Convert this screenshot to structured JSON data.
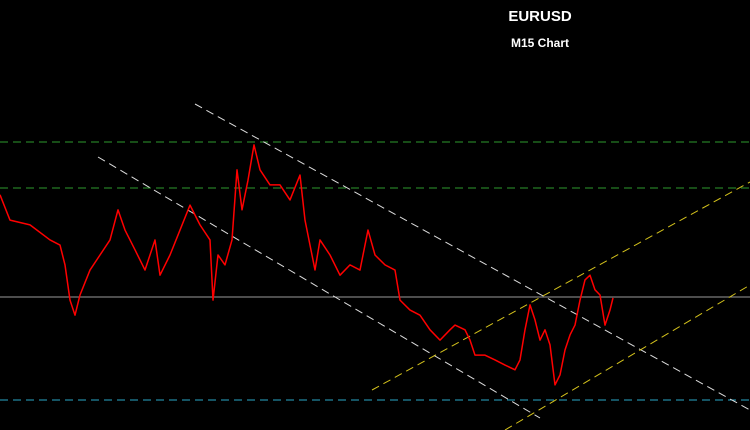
{
  "chart_data": {
    "type": "line",
    "title": "EURUSD",
    "subtitle": "M15 Chart",
    "xlim": [
      0,
      750
    ],
    "ylim": [
      0,
      100
    ],
    "color": "#ff0000",
    "x": [
      0,
      10,
      30,
      50,
      60,
      65,
      70,
      75,
      80,
      90,
      100,
      110,
      118,
      125,
      135,
      145,
      155,
      160,
      170,
      180,
      190,
      200,
      210,
      213,
      218,
      225,
      232,
      237,
      242,
      248,
      254,
      260,
      270,
      280,
      290,
      300,
      305,
      310,
      315,
      320,
      330,
      340,
      350,
      360,
      368,
      375,
      385,
      395,
      400,
      410,
      420,
      430,
      440,
      450,
      455,
      465,
      470,
      475,
      485,
      495,
      505,
      515,
      520,
      525,
      530,
      535,
      540,
      545,
      550,
      555,
      560,
      565,
      570,
      575,
      580,
      585,
      590,
      595,
      600,
      605,
      610,
      613
    ],
    "values": [
      54.7,
      48.8,
      47.7,
      44.2,
      43.0,
      38.4,
      30.2,
      26.7,
      31.4,
      37.2,
      40.7,
      44.2,
      51.2,
      46.5,
      41.9,
      37.2,
      44.2,
      36.0,
      40.7,
      46.5,
      52.3,
      47.7,
      44.2,
      30.2,
      40.7,
      38.4,
      44.2,
      60.5,
      51.2,
      58.1,
      66.3,
      60.5,
      57.0,
      57.0,
      53.5,
      59.3,
      48.8,
      43.0,
      37.2,
      44.2,
      40.7,
      36.0,
      38.4,
      37.2,
      46.5,
      40.7,
      38.4,
      37.2,
      30.2,
      27.9,
      26.7,
      23.3,
      20.9,
      23.3,
      24.4,
      23.3,
      20.9,
      17.4,
      17.4,
      16.3,
      15.1,
      14.0,
      16.3,
      23.3,
      29.1,
      25.6,
      20.9,
      23.3,
      19.8,
      10.5,
      12.8,
      18.6,
      22.1,
      24.4,
      30.2,
      34.9,
      36.0,
      32.6,
      31.4,
      24.4,
      27.9,
      30.7
    ]
  }
}
